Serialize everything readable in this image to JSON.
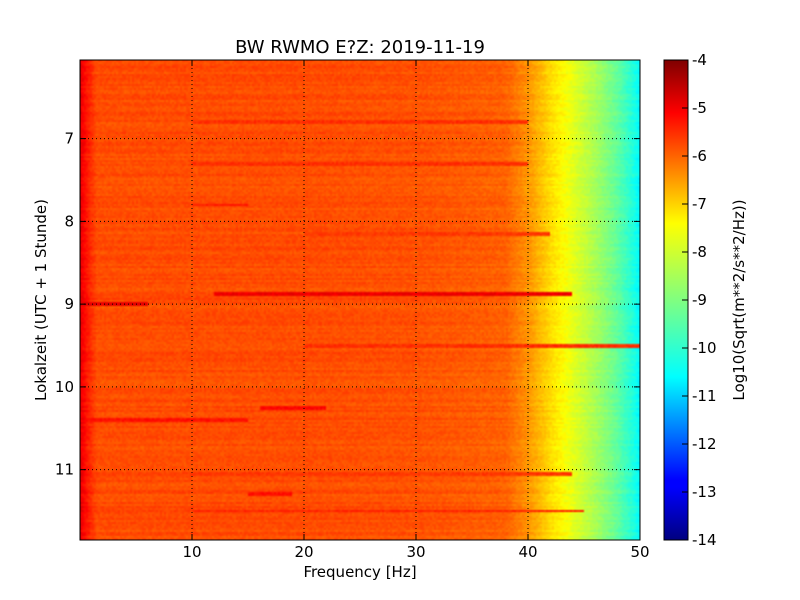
{
  "chart_data": {
    "type": "heatmap",
    "title": "BW RWMO E?Z: 2019-11-19",
    "xlabel": "Frequency [Hz]",
    "ylabel": "Lokalzeit (UTC + 1 Stunde)",
    "xlim": [
      0,
      50
    ],
    "ylim": [
      11.85,
      6.05
    ],
    "y_inverted": true,
    "x_ticks": [
      "10",
      "20",
      "30",
      "40",
      "50"
    ],
    "x_tick_values": [
      10,
      20,
      30,
      40,
      50
    ],
    "y_ticks": [
      "7",
      "8",
      "9",
      "10",
      "11"
    ],
    "y_tick_values": [
      7,
      8,
      9,
      10,
      11
    ],
    "grid": true,
    "colormap": "jet",
    "colorbar": {
      "label": "Log10(Sqrt(m**2/s**2/Hz))",
      "range": [
        -14,
        -4
      ],
      "ticks": [
        "-4",
        "-5",
        "-6",
        "-7",
        "-8",
        "-9",
        "-10",
        "-11",
        "-12",
        "-13",
        "-14"
      ],
      "tick_values": [
        -4,
        -5,
        -6,
        -7,
        -8,
        -9,
        -10,
        -11,
        -12,
        -13,
        -14
      ]
    },
    "spectral_profile": {
      "frequency_hz": [
        0,
        0.5,
        1.5,
        5,
        10,
        20,
        30,
        38,
        40,
        42,
        44,
        46,
        48,
        49.5,
        50
      ],
      "log10_amplitude": [
        -5.0,
        -5.4,
        -6.0,
        -6.0,
        -6.0,
        -6.0,
        -6.05,
        -6.2,
        -6.7,
        -7.4,
        -8.0,
        -8.6,
        -9.3,
        -10.0,
        -10.3
      ]
    },
    "horizontal_bands": [
      {
        "time": 8.88,
        "f_start": 12,
        "f_end": 44,
        "log10_amplitude": -5.1
      },
      {
        "time": 9.0,
        "f_start": 0,
        "f_end": 6,
        "log10_amplitude": -5.0
      },
      {
        "time": 10.25,
        "f_start": 16,
        "f_end": 22,
        "log10_amplitude": -5.3
      },
      {
        "time": 10.4,
        "f_start": 0,
        "f_end": 15,
        "log10_amplitude": -5.4
      },
      {
        "time": 11.3,
        "f_start": 15,
        "f_end": 19,
        "log10_amplitude": -5.4
      },
      {
        "time": 11.5,
        "f_start": 10,
        "f_end": 45,
        "log10_amplitude": -5.6
      },
      {
        "time": 6.8,
        "f_start": 10,
        "f_end": 40,
        "log10_amplitude": -5.7
      },
      {
        "time": 7.3,
        "f_start": 10,
        "f_end": 40,
        "log10_amplitude": -5.7
      },
      {
        "time": 7.8,
        "f_start": 10,
        "f_end": 15,
        "log10_amplitude": -5.5
      },
      {
        "time": 9.5,
        "f_start": 20,
        "f_end": 50,
        "log10_amplitude": -5.7
      },
      {
        "time": 8.15,
        "f_start": 20,
        "f_end": 42,
        "log10_amplitude": -5.8
      },
      {
        "time": 11.05,
        "f_start": 10,
        "f_end": 44,
        "log10_amplitude": -5.8
      }
    ]
  }
}
